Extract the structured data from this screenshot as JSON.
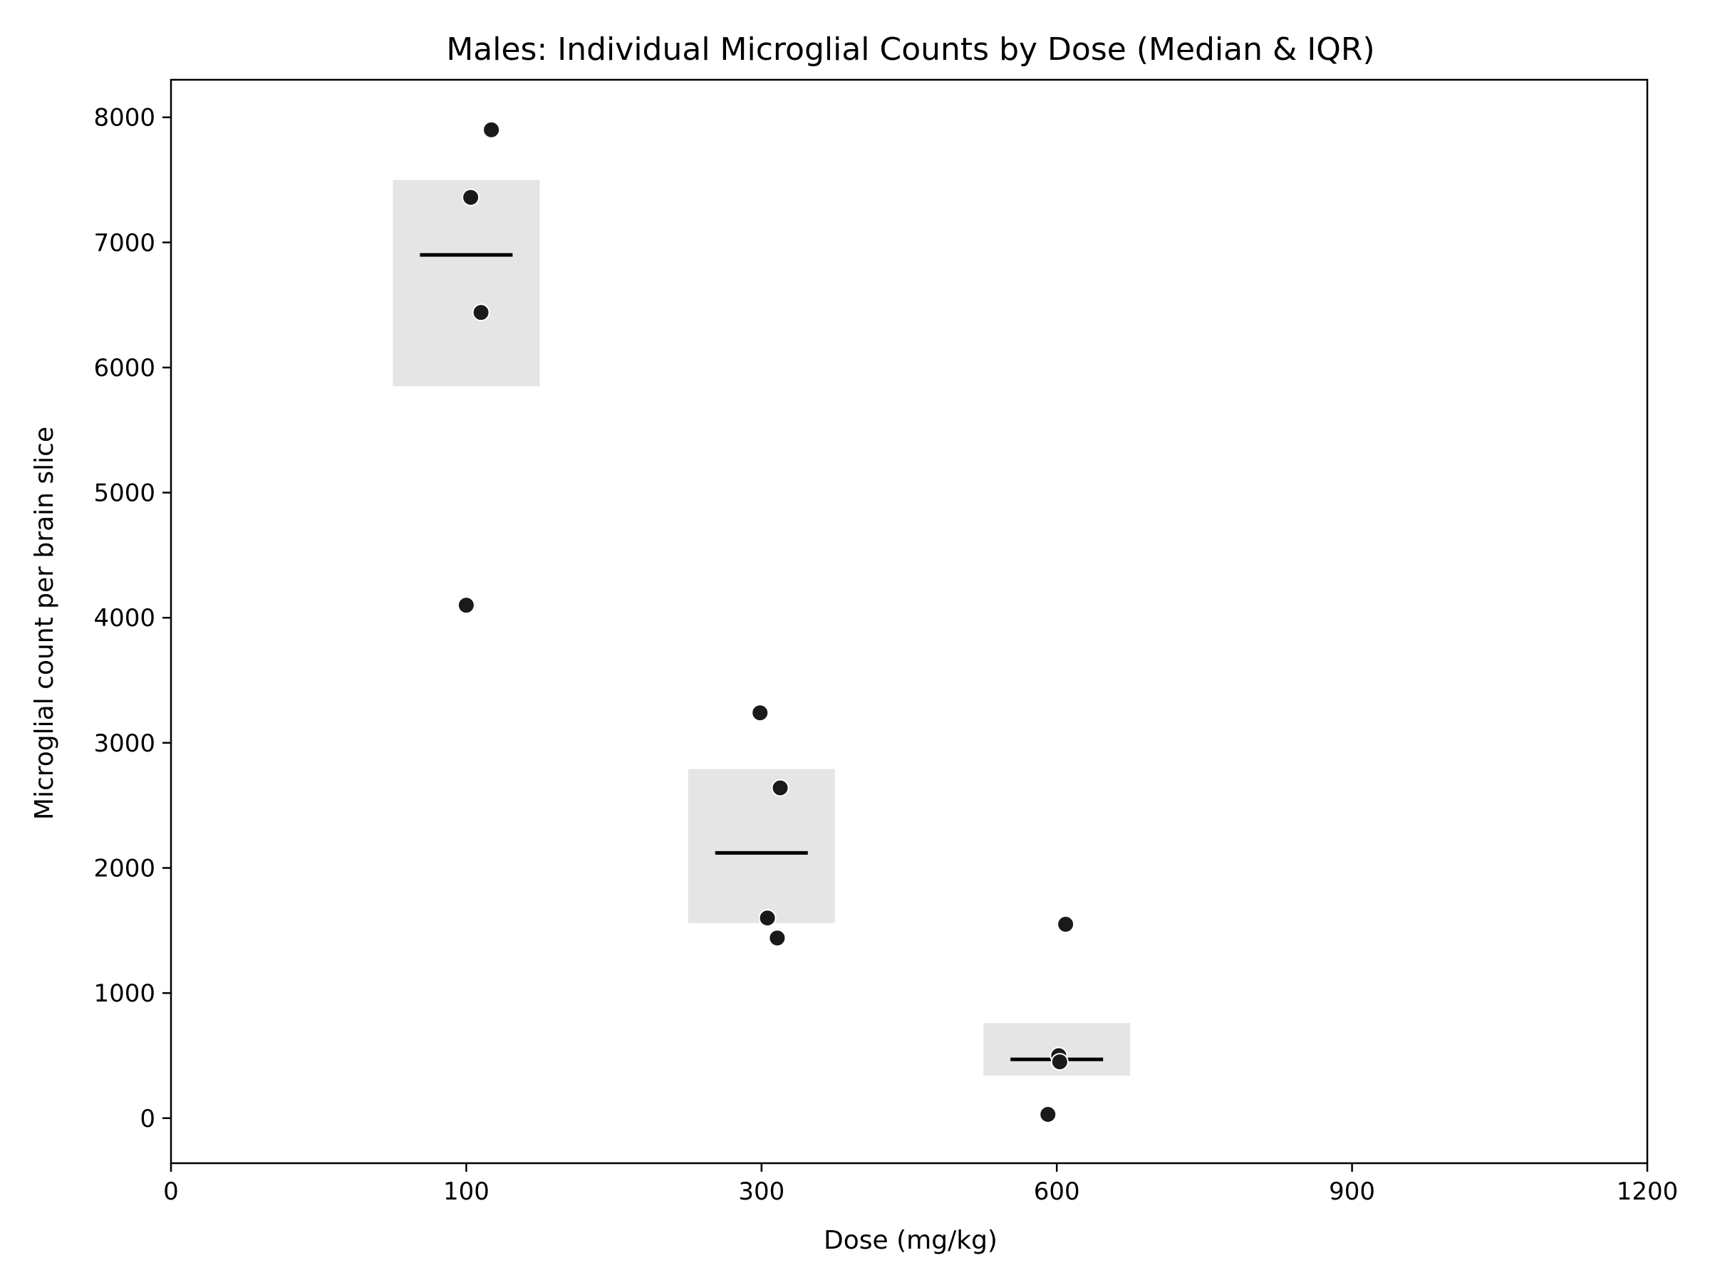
{
  "chart_data": {
    "type": "scatter",
    "title": "Males: Individual Microglial Counts by Dose (Median & IQR)",
    "xlabel": "Dose (mg/kg)",
    "ylabel": "Microglial count per brain slice",
    "xlim": [
      0,
      1200
    ],
    "ylim": [
      -360,
      8300
    ],
    "x_ticks": [
      0,
      100,
      300,
      600,
      900,
      1200
    ],
    "y_ticks": [
      0,
      1000,
      2000,
      3000,
      4000,
      5000,
      6000,
      7000,
      8000
    ],
    "grid": false,
    "legend": "none",
    "note": "x-axis categories placed at equal spacing",
    "colors": {
      "points": "#1a1a1a",
      "iqr_box": "#e5e5e5",
      "median_line": "#000000",
      "axes": "#000000"
    },
    "groups": [
      {
        "dose": 100,
        "median": 6900,
        "iqr": [
          5850,
          7500
        ],
        "points": [
          {
            "x": 100,
            "y": 4100
          },
          {
            "x": 110,
            "y": 6440
          },
          {
            "x": 103,
            "y": 7360
          },
          {
            "x": 117,
            "y": 7900
          }
        ]
      },
      {
        "dose": 300,
        "median": 2120,
        "iqr": [
          1560,
          2790
        ],
        "points": [
          {
            "x": 299,
            "y": 3240
          },
          {
            "x": 306,
            "y": 1600
          },
          {
            "x": 319,
            "y": 2640
          },
          {
            "x": 316,
            "y": 1440
          }
        ]
      },
      {
        "dose": 600,
        "median": 470,
        "iqr": [
          340,
          760
        ],
        "points": [
          {
            "x": 591,
            "y": 30
          },
          {
            "x": 602,
            "y": 500
          },
          {
            "x": 603,
            "y": 450
          },
          {
            "x": 609,
            "y": 1550
          }
        ]
      }
    ]
  }
}
